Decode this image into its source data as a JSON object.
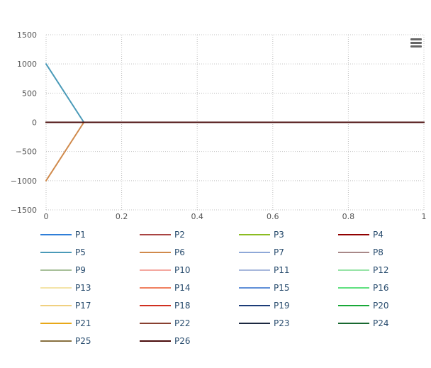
{
  "chart_data": {
    "type": "line",
    "title": "",
    "xlabel": "",
    "ylabel": "",
    "xlim": [
      0,
      1
    ],
    "ylim": [
      -1500,
      1500
    ],
    "x_ticks": [
      0,
      0.2,
      0.4,
      0.6,
      0.8,
      1
    ],
    "x_tick_labels": [
      "0",
      "0.2",
      "0.4",
      "0.6",
      "0.8",
      "1"
    ],
    "y_ticks": [
      1500,
      1000,
      500,
      0,
      -500,
      -1000,
      -1500
    ],
    "y_tick_labels": [
      "1500",
      "1000",
      "500",
      "0",
      "−500",
      "−1000",
      "−1500"
    ],
    "grid": true,
    "legend_position": "bottom",
    "series": [
      {
        "name": "P1",
        "color": "#2f7ed8",
        "x": [
          0,
          0.1,
          1
        ],
        "y": [
          0,
          0,
          0
        ]
      },
      {
        "name": "P2",
        "color": "#a94442",
        "x": [
          0,
          0.1,
          1
        ],
        "y": [
          0,
          0,
          0
        ]
      },
      {
        "name": "P3",
        "color": "#8bbc21",
        "x": [
          0,
          0.1,
          1
        ],
        "y": [
          0,
          0,
          0
        ]
      },
      {
        "name": "P4",
        "color": "#910000",
        "x": [
          0,
          0.1,
          1
        ],
        "y": [
          0,
          0,
          0
        ]
      },
      {
        "name": "P5",
        "color": "#4a9ab8",
        "x": [
          0,
          0.1,
          1
        ],
        "y": [
          1000,
          0,
          0
        ]
      },
      {
        "name": "P6",
        "color": "#d08a4c",
        "x": [
          0,
          0.1,
          1
        ],
        "y": [
          -1000,
          0,
          0
        ]
      },
      {
        "name": "P7",
        "color": "#8ea8d8",
        "x": [
          0,
          0.1,
          1
        ],
        "y": [
          0,
          0,
          0
        ]
      },
      {
        "name": "P8",
        "color": "#a88888",
        "x": [
          0,
          0.1,
          1
        ],
        "y": [
          0,
          0,
          0
        ]
      },
      {
        "name": "P9",
        "color": "#a8c09a",
        "x": [
          0,
          0.1,
          1
        ],
        "y": [
          0,
          0,
          0
        ]
      },
      {
        "name": "P10",
        "color": "#f4a8a0",
        "x": [
          0,
          0.1,
          1
        ],
        "y": [
          0,
          0,
          0
        ]
      },
      {
        "name": "P11",
        "color": "#a8b8dc",
        "x": [
          0,
          0.1,
          1
        ],
        "y": [
          0,
          0,
          0
        ]
      },
      {
        "name": "P12",
        "color": "#98e4a8",
        "x": [
          0,
          0.1,
          1
        ],
        "y": [
          0,
          0,
          0
        ]
      },
      {
        "name": "P13",
        "color": "#f4e4a8",
        "x": [
          0,
          0.1,
          1
        ],
        "y": [
          0,
          0,
          0
        ]
      },
      {
        "name": "P14",
        "color": "#f08060",
        "x": [
          0,
          0.1,
          1
        ],
        "y": [
          0,
          0,
          0
        ]
      },
      {
        "name": "P15",
        "color": "#6090d8",
        "x": [
          0,
          0.1,
          1
        ],
        "y": [
          0,
          0,
          0
        ]
      },
      {
        "name": "P16",
        "color": "#60e080",
        "x": [
          0,
          0.1,
          1
        ],
        "y": [
          0,
          0,
          0
        ]
      },
      {
        "name": "P17",
        "color": "#f0d080",
        "x": [
          0,
          0.1,
          1
        ],
        "y": [
          0,
          0,
          0
        ]
      },
      {
        "name": "P18",
        "color": "#d03020",
        "x": [
          0,
          0.1,
          1
        ],
        "y": [
          0,
          0,
          0
        ]
      },
      {
        "name": "P19",
        "color": "#1c3c78",
        "x": [
          0,
          0.1,
          1
        ],
        "y": [
          0,
          0,
          0
        ]
      },
      {
        "name": "P20",
        "color": "#18a838",
        "x": [
          0,
          0.1,
          1
        ],
        "y": [
          0,
          0,
          0
        ]
      },
      {
        "name": "P21",
        "color": "#e8a818",
        "x": [
          0,
          0.1,
          1
        ],
        "y": [
          0,
          0,
          0
        ]
      },
      {
        "name": "P22",
        "color": "#884030",
        "x": [
          0,
          0.1,
          1
        ],
        "y": [
          0,
          0,
          0
        ]
      },
      {
        "name": "P23",
        "color": "#1c2840",
        "x": [
          0,
          0.1,
          1
        ],
        "y": [
          0,
          0,
          0
        ]
      },
      {
        "name": "P24",
        "color": "#186830",
        "x": [
          0,
          0.1,
          1
        ],
        "y": [
          0,
          0,
          0
        ]
      },
      {
        "name": "P25",
        "color": "#887040",
        "x": [
          0,
          0.1,
          1
        ],
        "y": [
          0,
          0,
          0
        ]
      },
      {
        "name": "P26",
        "color": "#4a0c0c",
        "x": [
          0,
          0.1,
          1
        ],
        "y": [
          0,
          0,
          0
        ]
      }
    ]
  },
  "menu": {
    "icon": "hamburger-menu-icon",
    "color": "#666666"
  }
}
